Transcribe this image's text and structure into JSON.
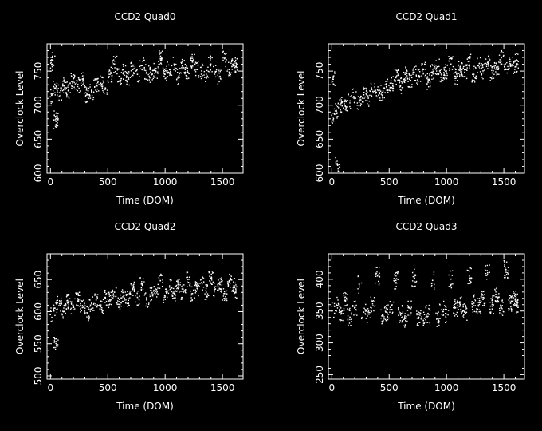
{
  "chart_data": [
    {
      "type": "scatter",
      "title": "CCD2 Quad0",
      "xlabel": "Time (DOM)",
      "ylabel": "Overclock Level",
      "xlim": [
        -30,
        1680
      ],
      "ylim": [
        600,
        790
      ],
      "xticks": [
        0,
        500,
        1000,
        1500
      ],
      "yticks": [
        600,
        650,
        700,
        750
      ],
      "tick_labels": {
        "x": [
          "0",
          "500",
          "1000",
          "1500"
        ],
        "y": [
          "600",
          "650",
          "700",
          "750"
        ]
      },
      "series": [
        {
          "name": "overclock",
          "x": [
            0,
            40,
            80,
            120,
            160,
            200,
            240,
            280,
            320,
            360,
            400,
            440,
            480,
            520,
            560,
            600,
            640,
            680,
            720,
            760,
            800,
            840,
            880,
            920,
            960,
            1000,
            1040,
            1080,
            1120,
            1160,
            1200,
            1240,
            1280,
            1320,
            1360,
            1400,
            1440,
            1480,
            1520,
            1560,
            1600,
            1620,
            5,
            20,
            50,
            50
          ],
          "y": [
            712,
            725,
            718,
            728,
            722,
            735,
            730,
            738,
            715,
            720,
            728,
            732,
            725,
            745,
            760,
            742,
            748,
            740,
            752,
            745,
            758,
            748,
            744,
            750,
            768,
            745,
            752,
            760,
            742,
            755,
            748,
            763,
            752,
            750,
            745,
            760,
            748,
            742,
            768,
            752,
            760,
            758,
            765,
            760,
            680,
            676
          ]
        }
      ]
    },
    {
      "type": "scatter",
      "title": "CCD2 Quad1",
      "xlabel": "Time (DOM)",
      "ylabel": "Overclock Level",
      "xlim": [
        -30,
        1680
      ],
      "ylim": [
        600,
        790
      ],
      "xticks": [
        0,
        500,
        1000,
        1500
      ],
      "yticks": [
        600,
        650,
        700,
        750
      ],
      "tick_labels": {
        "x": [
          "0",
          "500",
          "1000",
          "1500"
        ],
        "y": [
          "600",
          "650",
          "700",
          "750"
        ]
      },
      "series": [
        {
          "name": "overclock",
          "x": [
            0,
            40,
            80,
            120,
            160,
            200,
            240,
            280,
            320,
            360,
            400,
            440,
            480,
            520,
            560,
            600,
            640,
            680,
            720,
            760,
            800,
            840,
            880,
            920,
            960,
            1000,
            1040,
            1080,
            1120,
            1160,
            1200,
            1240,
            1280,
            1320,
            1360,
            1400,
            1440,
            1480,
            1520,
            1560,
            1600,
            1620,
            10,
            50
          ],
          "y": [
            685,
            692,
            700,
            698,
            706,
            712,
            704,
            715,
            710,
            720,
            722,
            718,
            726,
            732,
            740,
            728,
            745,
            738,
            748,
            742,
            752,
            735,
            748,
            756,
            744,
            750,
            760,
            742,
            754,
            748,
            764,
            745,
            758,
            750,
            762,
            747,
            756,
            770,
            752,
            760,
            756,
            765,
            738,
            612
          ]
        }
      ]
    },
    {
      "type": "scatter",
      "title": "CCD2 Quad2",
      "xlabel": "Time (DOM)",
      "ylabel": "Overclock Level",
      "xlim": [
        -30,
        1680
      ],
      "ylim": [
        495,
        690
      ],
      "xticks": [
        0,
        500,
        1000,
        1500
      ],
      "yticks": [
        500,
        550,
        600,
        650
      ],
      "tick_labels": {
        "x": [
          "0",
          "500",
          "1000",
          "1500"
        ],
        "y": [
          "500",
          "550",
          "600",
          "650"
        ]
      },
      "series": [
        {
          "name": "overclock",
          "x": [
            0,
            40,
            80,
            120,
            160,
            200,
            240,
            280,
            320,
            360,
            400,
            440,
            480,
            520,
            560,
            600,
            640,
            680,
            720,
            760,
            800,
            840,
            880,
            920,
            960,
            1000,
            1040,
            1080,
            1120,
            1160,
            1200,
            1240,
            1280,
            1320,
            1360,
            1400,
            1440,
            1480,
            1520,
            1560,
            1600,
            1620,
            50
          ],
          "y": [
            595,
            605,
            612,
            600,
            615,
            608,
            620,
            606,
            598,
            612,
            618,
            608,
            622,
            618,
            630,
            615,
            625,
            620,
            635,
            622,
            642,
            618,
            628,
            632,
            648,
            625,
            638,
            628,
            640,
            630,
            650,
            628,
            636,
            645,
            630,
            652,
            635,
            642,
            628,
            648,
            640,
            632,
            553
          ]
        }
      ]
    },
    {
      "type": "scatter",
      "title": "CCD2 Quad3",
      "xlabel": "Time (DOM)",
      "ylabel": "Overclock Level",
      "xlim": [
        -30,
        1680
      ],
      "ylim": [
        243,
        440
      ],
      "xticks": [
        0,
        500,
        1000,
        1500
      ],
      "yticks": [
        250,
        300,
        350,
        400
      ],
      "tick_labels": {
        "x": [
          "0",
          "500",
          "1000",
          "1500"
        ],
        "y": [
          "250",
          "300",
          "350",
          "400"
        ]
      },
      "series": [
        {
          "name": "overclock",
          "x": [
            0,
            40,
            80,
            120,
            160,
            200,
            240,
            280,
            320,
            360,
            400,
            440,
            480,
            520,
            560,
            600,
            640,
            680,
            720,
            760,
            800,
            840,
            880,
            920,
            960,
            1000,
            1040,
            1080,
            1120,
            1160,
            1200,
            1240,
            1280,
            1320,
            1360,
            1400,
            1440,
            1480,
            1520,
            1560,
            1600,
            1620
          ],
          "y": [
            350,
            360,
            345,
            365,
            340,
            355,
            392,
            348,
            345,
            358,
            405,
            342,
            348,
            352,
            398,
            345,
            338,
            355,
            402,
            340,
            335,
            345,
            398,
            338,
            352,
            345,
            400,
            355,
            360,
            348,
            405,
            362,
            358,
            368,
            410,
            360,
            372,
            355,
            415,
            362,
            368,
            358
          ]
        }
      ]
    }
  ]
}
